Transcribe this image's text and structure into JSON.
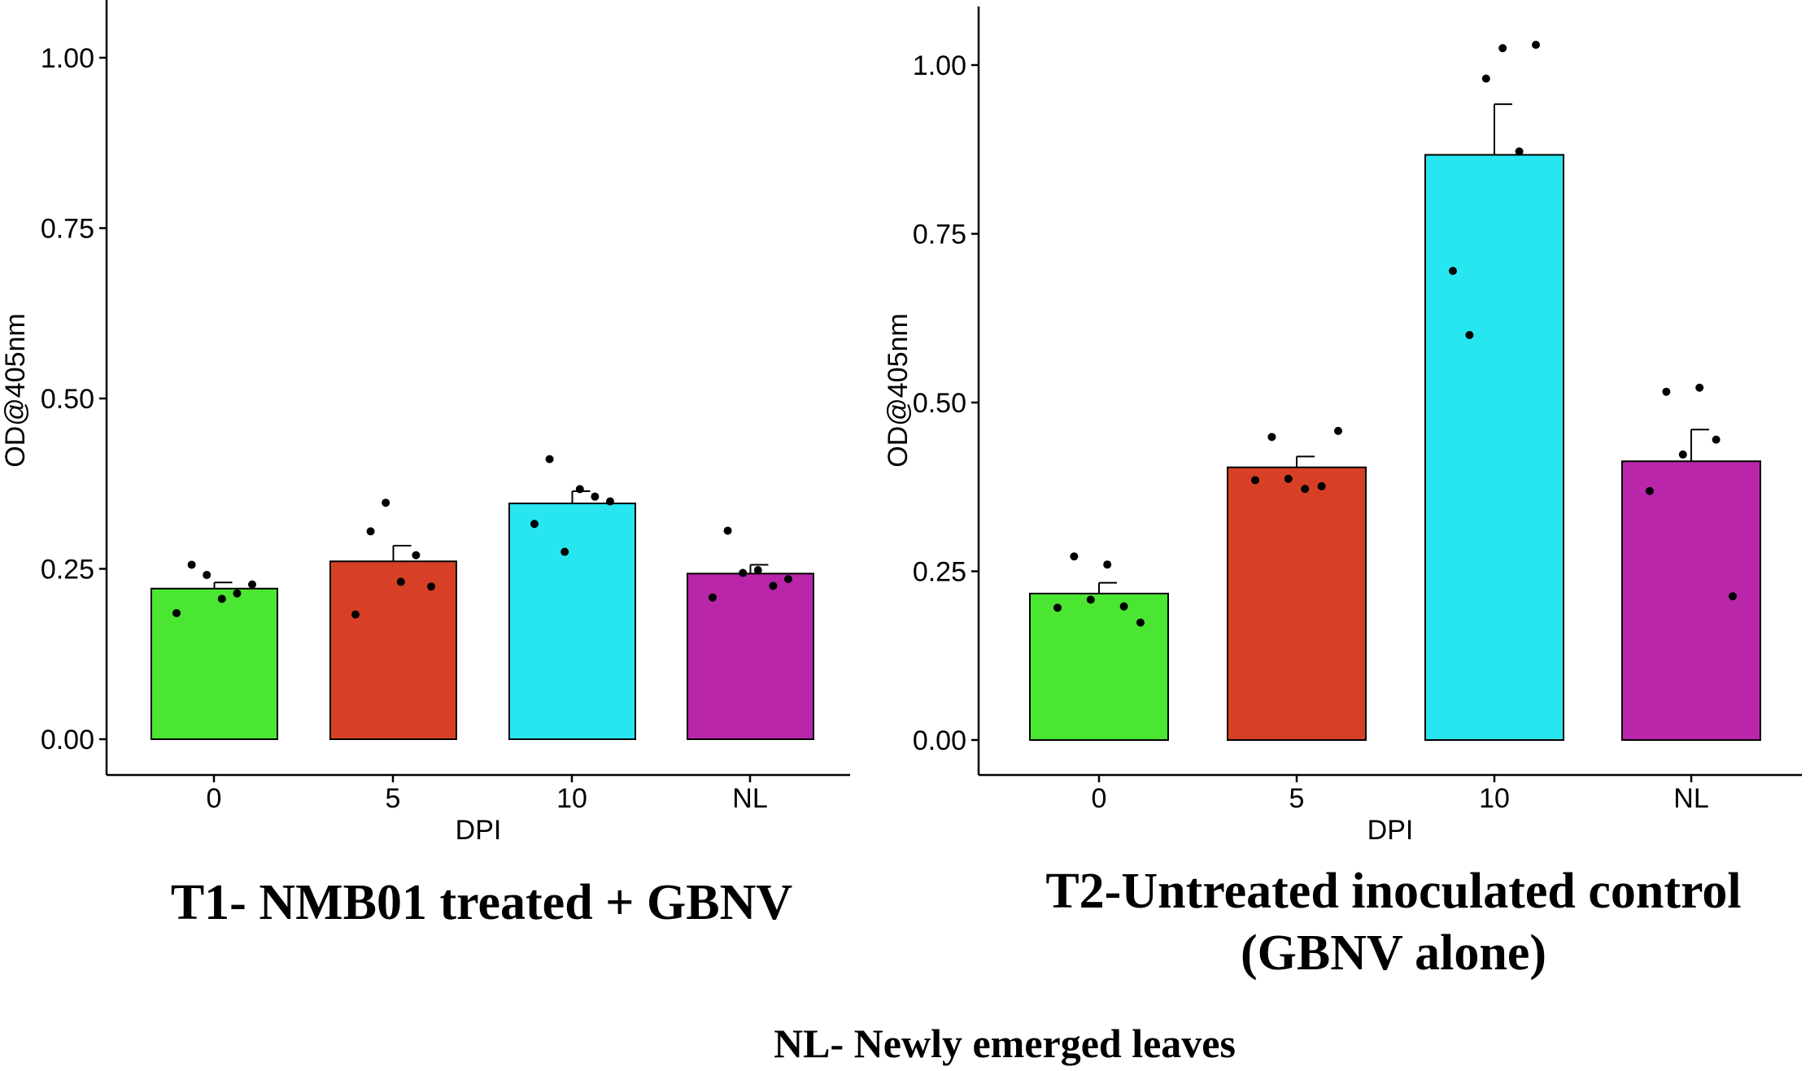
{
  "chart_data": [
    {
      "type": "bar",
      "title": "T1- NMB01 treated + GBNV",
      "xlabel": "DPI",
      "ylabel": "OD@405nm",
      "ylim": [
        0,
        1.05
      ],
      "yticks": [
        "0.00",
        "0.25",
        "0.50",
        "0.75",
        "1.00"
      ],
      "categories": [
        "0",
        "5",
        "10",
        "NL"
      ],
      "colors": [
        "#4ae632",
        "#d74026",
        "#28e6f0",
        "#b926aa"
      ],
      "values": [
        0.221,
        0.261,
        0.346,
        0.243
      ],
      "errors": [
        0.009,
        0.023,
        0.018,
        0.013
      ],
      "points": [
        [
          0.185,
          0.256,
          0.241,
          0.206,
          0.214,
          0.227
        ],
        [
          0.183,
          0.305,
          0.347,
          0.231,
          0.27,
          0.224
        ],
        [
          0.316,
          0.411,
          0.275,
          0.367,
          0.356,
          0.349
        ],
        [
          0.208,
          0.306,
          0.244,
          0.248,
          0.225,
          0.235
        ]
      ]
    },
    {
      "type": "bar",
      "title": [
        "T2-Untreated inoculated control",
        "(GBNV alone)"
      ],
      "xlabel": "DPI",
      "ylabel": "OD@405nm",
      "ylim": [
        0,
        1.08
      ],
      "yticks": [
        "0.00",
        "0.25",
        "0.50",
        "0.75",
        "1.00"
      ],
      "categories": [
        "0",
        "5",
        "10",
        "NL"
      ],
      "colors": [
        "#4ae632",
        "#d74026",
        "#28e6f0",
        "#b926aa"
      ],
      "values": [
        0.217,
        0.404,
        0.867,
        0.413
      ],
      "errors": [
        0.016,
        0.016,
        0.075,
        0.047
      ],
      "points": [
        [
          0.196,
          0.272,
          0.208,
          0.26,
          0.198,
          0.174
        ],
        [
          0.385,
          0.449,
          0.387,
          0.372,
          0.376,
          0.458
        ],
        [
          0.695,
          0.6,
          0.98,
          1.025,
          0.872,
          1.03
        ],
        [
          0.369,
          0.516,
          0.423,
          0.522,
          0.445,
          0.213
        ]
      ]
    }
  ],
  "footnote": "NL- Newly emerged leaves"
}
